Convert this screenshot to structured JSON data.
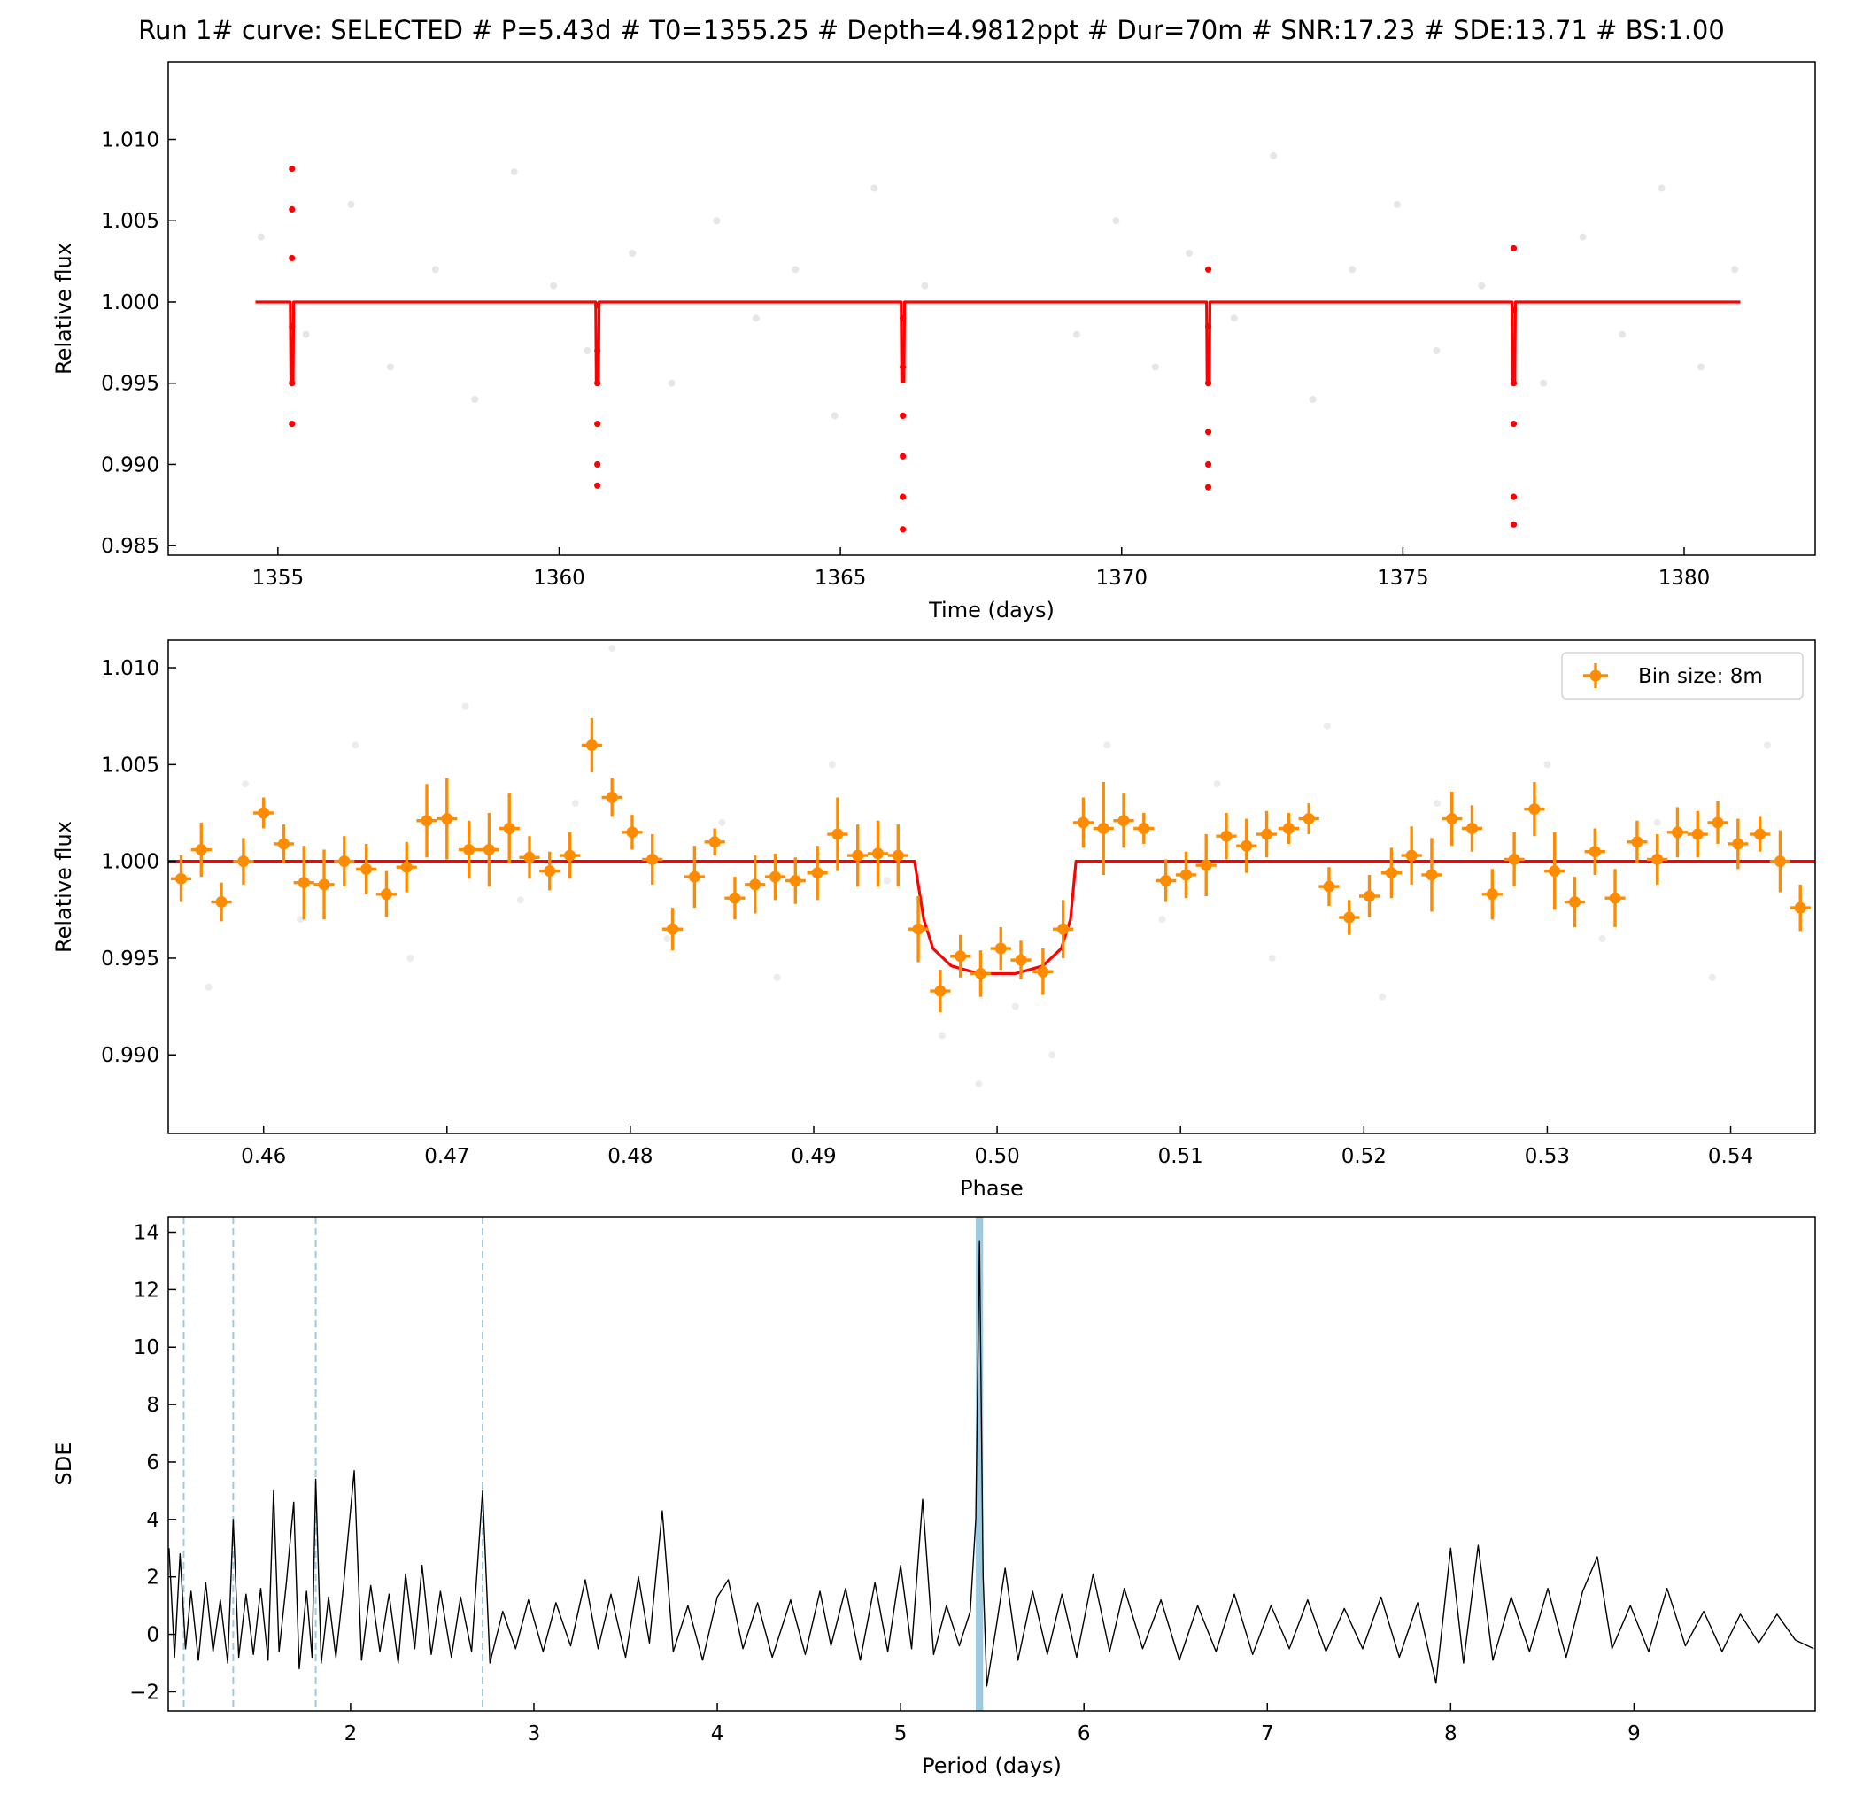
{
  "chart_data": [
    {
      "type": "scatter",
      "title": "Run 1# curve: SELECTED # P=5.43d # T0=1355.25 # Depth=4.9812ppt # Dur=70m # SNR:17.23 # SDE:13.71 # BS:1.00",
      "xlabel": "Time (days)",
      "ylabel": "Relative flux",
      "xlim": [
        1353.05,
        1382.33
      ],
      "ylim": [
        0.98441,
        1.01477
      ],
      "xticks": [
        1355,
        1360,
        1365,
        1370,
        1375,
        1380
      ],
      "yticks": [
        0.985,
        {
          "value": 0.99,
          "label": "0.990"
        },
        0.995,
        {
          "value": 1.0,
          "label": "1.000"
        },
        1.005,
        {
          "value": 1.01,
          "label": "1.010"
        }
      ],
      "series": [
        {
          "style": "points",
          "color": "#808080",
          "alpha": 0.2,
          "x": [
            1354.7,
            1355.5,
            1356.3,
            1357.0,
            1357.8,
            1358.5,
            1359.2,
            1359.9,
            1360.5,
            1361.3,
            1362.0,
            1362.8,
            1363.5,
            1364.2,
            1364.9,
            1365.6,
            1366.5,
            1369.2,
            1369.9,
            1370.6,
            1371.2,
            1372.0,
            1372.7,
            1373.4,
            1374.1,
            1374.9,
            1375.6,
            1376.4,
            1377.5,
            1378.2,
            1378.9,
            1379.6,
            1380.3,
            1380.9
          ],
          "values": [
            1.004,
            0.998,
            1.006,
            0.996,
            1.002,
            0.994,
            1.008,
            1.001,
            0.997,
            1.003,
            0.995,
            1.005,
            0.999,
            1.002,
            0.993,
            1.007,
            1.001,
            0.998,
            1.005,
            0.996,
            1.003,
            0.999,
            1.009,
            0.994,
            1.002,
            1.006,
            0.997,
            1.001,
            0.995,
            1.004,
            0.998,
            1.007,
            0.996,
            1.002
          ]
        },
        {
          "style": "line",
          "color": "#ff0000",
          "x": [
            1354.6,
            1355.22,
            1355.23,
            1355.27,
            1355.28,
            1360.65,
            1360.66,
            1360.7,
            1360.71,
            1366.08,
            1366.09,
            1366.13,
            1366.14,
            1371.51,
            1371.52,
            1371.56,
            1371.57,
            1376.94,
            1376.95,
            1376.99,
            1377.0,
            1381.0
          ],
          "values": [
            1.0,
            1.0,
            0.9951,
            0.9951,
            1.0,
            1.0,
            0.9951,
            0.9951,
            1.0,
            1.0,
            0.9951,
            0.9951,
            1.0,
            1.0,
            0.9951,
            0.9951,
            1.0,
            1.0,
            0.9951,
            0.9951,
            1.0,
            1.0
          ]
        },
        {
          "style": "points",
          "color": "#ff0000",
          "alpha": 1,
          "x": [
            1355.25,
            1355.25,
            1355.25,
            1355.25,
            1355.25,
            1355.25,
            1360.68,
            1360.68,
            1360.68,
            1360.68,
            1360.68,
            1360.68,
            1366.11,
            1366.11,
            1366.11,
            1366.11,
            1366.11,
            1366.11,
            1371.54,
            1371.54,
            1371.54,
            1371.54,
            1371.54,
            1371.54,
            1376.97,
            1376.97,
            1376.97,
            1376.97,
            1376.97,
            1376.97
          ],
          "values": [
            1.0082,
            1.0057,
            1.0027,
            0.9985,
            0.995,
            0.9925,
            0.9998,
            0.997,
            0.995,
            0.9925,
            0.99,
            0.9887,
            0.999,
            0.996,
            0.993,
            0.9905,
            0.988,
            0.986,
            1.002,
            0.9985,
            0.995,
            0.992,
            0.99,
            0.9886,
            1.0033,
            0.9995,
            0.995,
            0.9925,
            0.988,
            0.9863
          ]
        }
      ]
    },
    {
      "type": "errorbar",
      "xlabel": "Phase",
      "ylabel": "Relative flux",
      "xlim": [
        0.4548,
        0.54461
      ],
      "ylim": [
        0.98594,
        1.01142
      ],
      "xticks": [
        0.46,
        0.47,
        0.48,
        0.49,
        {
          "value": 0.5,
          "label": "0.50"
        },
        0.51,
        0.52,
        0.53,
        0.54
      ],
      "yticks": [
        {
          "value": 0.99,
          "label": "0.990"
        },
        0.995,
        {
          "value": 1.0,
          "label": "1.000"
        },
        1.005,
        {
          "value": 1.01,
          "label": "1.010"
        }
      ],
      "legend": "upper right",
      "series": [
        {
          "style": "points",
          "color": "#808080",
          "alpha": 0.15,
          "x": [
            0.457,
            0.459,
            0.462,
            0.465,
            0.468,
            0.471,
            0.474,
            0.477,
            0.479,
            0.482,
            0.485,
            0.488,
            0.491,
            0.494,
            0.497,
            0.499,
            0.501,
            0.503,
            0.506,
            0.509,
            0.512,
            0.515,
            0.518,
            0.521,
            0.524,
            0.527,
            0.53,
            0.533,
            0.536,
            0.539,
            0.542
          ],
          "values": [
            0.9935,
            1.004,
            0.997,
            1.006,
            0.995,
            1.008,
            0.998,
            1.003,
            1.011,
            0.996,
            1.002,
            0.994,
            1.005,
            0.999,
            0.991,
            0.9885,
            0.9925,
            0.99,
            1.006,
            0.997,
            1.004,
            0.995,
            1.007,
            0.993,
            1.003,
            0.998,
            1.005,
            0.996,
            1.002,
            0.994,
            1.006
          ]
        },
        {
          "style": "line",
          "color": "#ff0000",
          "x": [
            0.4548,
            0.4955,
            0.496,
            0.4965,
            0.4975,
            0.499,
            0.501,
            0.5025,
            0.5035,
            0.504,
            0.5043,
            0.54461
          ],
          "values": [
            1.0,
            1.0,
            0.997,
            0.9955,
            0.9946,
            0.9942,
            0.9942,
            0.9946,
            0.9955,
            0.997,
            1.0,
            1.0
          ]
        },
        {
          "style": "errorbar",
          "name": "Bin size: 8m",
          "color": "#ff8c00",
          "xerr": 0.00056,
          "x": [
            0.4555,
            0.4566,
            0.4577,
            0.4589,
            0.46,
            0.4611,
            0.4622,
            0.4633,
            0.4644,
            0.4656,
            0.4667,
            0.4678,
            0.4689,
            0.47,
            0.4712,
            0.4723,
            0.4734,
            0.4745,
            0.4756,
            0.4767,
            0.4779,
            0.479,
            0.4801,
            0.4812,
            0.4823,
            0.4835,
            0.4846,
            0.4857,
            0.4868,
            0.4879,
            0.489,
            0.4902,
            0.4913,
            0.4924,
            0.4935,
            0.4946,
            0.4957,
            0.4969,
            0.498,
            0.4991,
            0.5002,
            0.5013,
            0.5025,
            0.5036,
            0.5047,
            0.5058,
            0.5069,
            0.508,
            0.5092,
            0.5103,
            0.5114,
            0.5125,
            0.5136,
            0.5147,
            0.5159,
            0.517,
            0.5181,
            0.5192,
            0.5203,
            0.5215,
            0.5226,
            0.5237,
            0.5248,
            0.5259,
            0.527,
            0.5282,
            0.5293,
            0.5304,
            0.5315,
            0.5326,
            0.5337,
            0.5349,
            0.536,
            0.5371,
            0.5382,
            0.5393,
            0.5404,
            0.5416,
            0.5427,
            0.5438
          ],
          "values": [
            0.9991,
            1.0006,
            0.9979,
            1.0,
            1.0025,
            1.0009,
            0.9989,
            0.9988,
            1.0,
            0.9996,
            0.9983,
            0.9997,
            1.0021,
            1.0022,
            1.0006,
            1.0006,
            1.0017,
            1.0002,
            0.9995,
            1.0003,
            1.006,
            1.0033,
            1.0015,
            1.0001,
            0.9965,
            0.9992,
            1.001,
            0.9981,
            0.9988,
            0.9992,
            0.999,
            0.9994,
            1.0014,
            1.0003,
            1.0004,
            1.0003,
            0.9965,
            0.9933,
            0.9951,
            0.9942,
            0.9955,
            0.9949,
            0.9943,
            0.9965,
            1.002,
            1.0017,
            1.0021,
            1.0017,
            0.999,
            0.9993,
            0.9998,
            1.0013,
            1.0008,
            1.0014,
            1.0017,
            1.0022,
            0.9987,
            0.9971,
            0.9982,
            0.9994,
            1.0003,
            0.9993,
            1.0022,
            1.0017,
            0.9983,
            1.0001,
            1.0027,
            0.9995,
            0.9979,
            1.0005,
            0.9981,
            1.001,
            1.0001,
            1.0015,
            1.0014,
            1.002,
            1.0009,
            1.0014,
            1.0,
            0.9976
          ],
          "yerr": [
            0.0012,
            0.0014,
            0.001,
            0.0012,
            0.0008,
            0.001,
            0.0019,
            0.0018,
            0.0013,
            0.0013,
            0.0012,
            0.0013,
            0.0019,
            0.0021,
            0.0015,
            0.0019,
            0.0018,
            0.0011,
            0.001,
            0.0012,
            0.0014,
            0.001,
            0.0009,
            0.0013,
            0.0011,
            0.0016,
            0.0007,
            0.0011,
            0.0015,
            0.0012,
            0.0012,
            0.0014,
            0.0019,
            0.0016,
            0.0017,
            0.0016,
            0.0017,
            0.0011,
            0.0011,
            0.0012,
            0.0011,
            0.001,
            0.0012,
            0.0015,
            0.0013,
            0.0024,
            0.0014,
            0.0008,
            0.0011,
            0.0012,
            0.0016,
            0.0012,
            0.0014,
            0.0012,
            0.0008,
            0.0008,
            0.001,
            0.0009,
            0.0011,
            0.0013,
            0.0015,
            0.0019,
            0.0014,
            0.0012,
            0.0013,
            0.0014,
            0.0014,
            0.002,
            0.0013,
            0.0012,
            0.0015,
            0.0011,
            0.0013,
            0.0013,
            0.0012,
            0.0011,
            0.0013,
            0.0009,
            0.0016,
            0.0012
          ]
        }
      ]
    },
    {
      "type": "line",
      "xlabel": "Period (days)",
      "ylabel": "SDE",
      "xlim": [
        1.0056,
        9.988
      ],
      "ylim": [
        -2.665,
        14.54
      ],
      "xticks": [
        2,
        3,
        4,
        5,
        6,
        7,
        8,
        9
      ],
      "yticks": [
        {
          "value": -2,
          "label": "−2"
        },
        0,
        2,
        4,
        6,
        8,
        10,
        12,
        14
      ],
      "period_band": [
        5.41,
        5.45
      ],
      "band_color": "#9ecae1",
      "harmonics": [
        1.09,
        1.36,
        1.81,
        2.72
      ],
      "harmonic_color": "#9ecae1",
      "series": [
        {
          "style": "line",
          "color": "#000000",
          "x": [
            1.01,
            1.04,
            1.07,
            1.1,
            1.13,
            1.17,
            1.21,
            1.25,
            1.29,
            1.33,
            1.36,
            1.39,
            1.43,
            1.47,
            1.51,
            1.55,
            1.58,
            1.61,
            1.65,
            1.69,
            1.72,
            1.76,
            1.79,
            1.81,
            1.84,
            1.88,
            1.92,
            1.96,
            2.02,
            2.06,
            2.11,
            2.16,
            2.21,
            2.26,
            2.3,
            2.35,
            2.39,
            2.44,
            2.49,
            2.55,
            2.6,
            2.66,
            2.72,
            2.76,
            2.83,
            2.9,
            2.97,
            3.05,
            3.12,
            3.2,
            3.28,
            3.35,
            3.42,
            3.5,
            3.57,
            3.63,
            3.7,
            3.76,
            3.84,
            3.92,
            4.0,
            4.06,
            4.14,
            4.22,
            4.3,
            4.4,
            4.48,
            4.56,
            4.62,
            4.7,
            4.78,
            4.86,
            4.93,
            5.0,
            5.06,
            5.12,
            5.18,
            5.25,
            5.32,
            5.38,
            5.41,
            5.43,
            5.45,
            5.47,
            5.52,
            5.57,
            5.64,
            5.72,
            5.8,
            5.88,
            5.96,
            6.05,
            6.14,
            6.22,
            6.32,
            6.42,
            6.52,
            6.62,
            6.72,
            6.82,
            6.92,
            7.02,
            7.12,
            7.22,
            7.32,
            7.42,
            7.52,
            7.62,
            7.72,
            7.82,
            7.92,
            8.0,
            8.07,
            8.15,
            8.23,
            8.33,
            8.43,
            8.53,
            8.63,
            8.72,
            8.8,
            8.88,
            8.98,
            9.08,
            9.18,
            9.28,
            9.38,
            9.48,
            9.58,
            9.68,
            9.78,
            9.88,
            9.98
          ],
          "values": [
            3.0,
            -0.8,
            2.8,
            -0.5,
            1.5,
            -0.9,
            1.8,
            -0.6,
            1.2,
            -1.0,
            4.0,
            -0.8,
            1.4,
            -0.7,
            1.6,
            -0.9,
            5.0,
            -0.6,
            1.8,
            4.6,
            -1.2,
            1.5,
            -0.8,
            5.4,
            -1.0,
            1.3,
            -0.8,
            1.6,
            5.7,
            -0.9,
            1.7,
            -0.6,
            1.4,
            -1.0,
            2.1,
            -0.5,
            2.4,
            -0.7,
            1.5,
            -0.8,
            1.3,
            -0.6,
            5.0,
            -1.0,
            0.8,
            -0.5,
            1.2,
            -0.6,
            1.1,
            -0.4,
            1.9,
            -0.5,
            1.4,
            -0.8,
            2.0,
            -0.3,
            4.3,
            -0.6,
            1.0,
            -0.9,
            1.3,
            1.9,
            -0.5,
            1.1,
            -0.8,
            1.2,
            -0.7,
            1.5,
            -0.4,
            1.6,
            -0.9,
            1.8,
            -0.6,
            2.4,
            -0.5,
            4.7,
            -0.7,
            1.0,
            -0.4,
            0.8,
            4.0,
            13.7,
            2.0,
            -1.8,
            0.2,
            2.3,
            -0.9,
            1.5,
            -0.7,
            1.4,
            -0.8,
            2.1,
            -0.6,
            1.6,
            -0.5,
            1.2,
            -0.9,
            1.0,
            -0.6,
            1.4,
            -0.7,
            1.0,
            -0.5,
            1.2,
            -0.6,
            0.9,
            -0.5,
            1.3,
            -0.8,
            1.1,
            -1.7,
            3.0,
            -1.0,
            3.1,
            -0.9,
            1.3,
            -0.6,
            1.6,
            -0.8,
            1.5,
            2.7,
            -0.5,
            1.0,
            -0.6,
            1.6,
            -0.4,
            0.8,
            -0.6,
            0.7,
            -0.3,
            0.7,
            -0.2,
            -0.5
          ]
        }
      ]
    }
  ]
}
